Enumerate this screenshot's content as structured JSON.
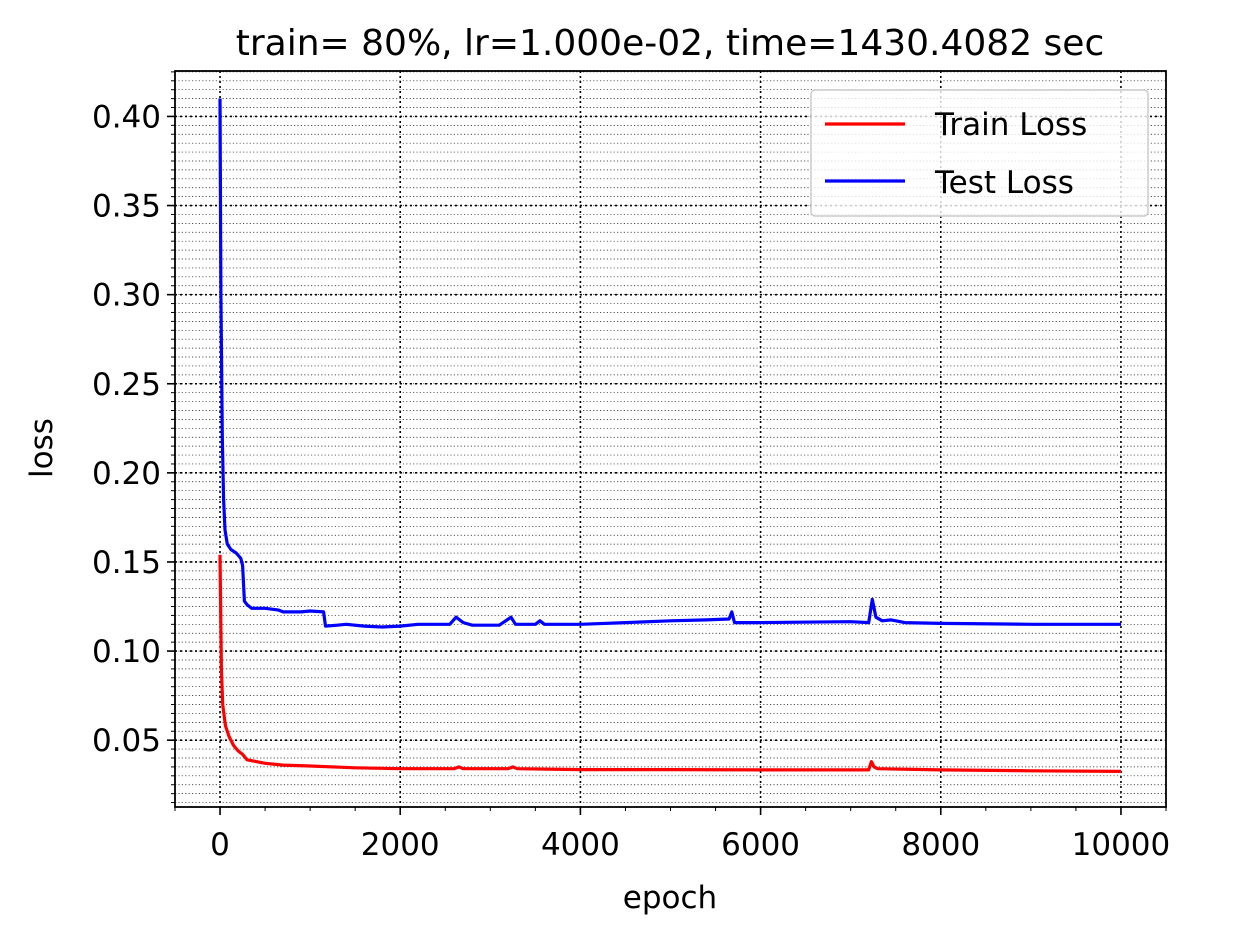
{
  "chart_data": {
    "type": "line",
    "title": "train= 80%, lr=1.000e-02, time=1430.4082 sec",
    "xlabel": "epoch",
    "ylabel": "loss",
    "xlim": [
      -500,
      10500
    ],
    "ylim": [
      0.0125,
      0.4255
    ],
    "x_ticks": [
      0,
      2000,
      4000,
      6000,
      8000,
      10000
    ],
    "x_tick_labels": [
      "0",
      "2000",
      "4000",
      "6000",
      "8000",
      "10000"
    ],
    "x_minor_step": 500,
    "y_ticks": [
      0.05,
      0.1,
      0.15,
      0.2,
      0.25,
      0.3,
      0.35,
      0.4
    ],
    "y_tick_labels": [
      "0.05",
      "0.10",
      "0.15",
      "0.20",
      "0.25",
      "0.30",
      "0.35",
      "0.40"
    ],
    "y_minor_step": 0.005,
    "grid": true,
    "grid_style": "dotted",
    "legend_position": "top-right",
    "series": [
      {
        "name": "Train Loss",
        "color": "#ff0000",
        "points": [
          [
            0,
            0.154
          ],
          [
            15,
            0.09
          ],
          [
            30,
            0.07
          ],
          [
            60,
            0.058
          ],
          [
            100,
            0.052
          ],
          [
            150,
            0.047
          ],
          [
            200,
            0.044
          ],
          [
            250,
            0.042
          ],
          [
            300,
            0.039
          ],
          [
            400,
            0.038
          ],
          [
            500,
            0.037
          ],
          [
            700,
            0.036
          ],
          [
            1000,
            0.0355
          ],
          [
            1500,
            0.0345
          ],
          [
            2000,
            0.034
          ],
          [
            2600,
            0.034
          ],
          [
            2650,
            0.035
          ],
          [
            2700,
            0.034
          ],
          [
            3200,
            0.034
          ],
          [
            3250,
            0.035
          ],
          [
            3300,
            0.034
          ],
          [
            4000,
            0.0335
          ],
          [
            5000,
            0.0335
          ],
          [
            6000,
            0.0333
          ],
          [
            7000,
            0.0333
          ],
          [
            7200,
            0.0333
          ],
          [
            7230,
            0.038
          ],
          [
            7260,
            0.035
          ],
          [
            7300,
            0.034
          ],
          [
            8000,
            0.0333
          ],
          [
            9000,
            0.0328
          ],
          [
            10000,
            0.0325
          ]
        ]
      },
      {
        "name": "Test Loss",
        "color": "#0000ff",
        "points": [
          [
            0,
            0.41
          ],
          [
            10,
            0.3
          ],
          [
            25,
            0.22
          ],
          [
            40,
            0.185
          ],
          [
            55,
            0.168
          ],
          [
            80,
            0.16
          ],
          [
            120,
            0.157
          ],
          [
            180,
            0.155
          ],
          [
            230,
            0.152
          ],
          [
            250,
            0.148
          ],
          [
            270,
            0.128
          ],
          [
            300,
            0.126
          ],
          [
            350,
            0.124
          ],
          [
            500,
            0.124
          ],
          [
            650,
            0.123
          ],
          [
            700,
            0.122
          ],
          [
            900,
            0.122
          ],
          [
            1000,
            0.1225
          ],
          [
            1150,
            0.122
          ],
          [
            1170,
            0.114
          ],
          [
            1300,
            0.1145
          ],
          [
            1400,
            0.115
          ],
          [
            1600,
            0.114
          ],
          [
            1800,
            0.1135
          ],
          [
            2000,
            0.114
          ],
          [
            2200,
            0.115
          ],
          [
            2550,
            0.115
          ],
          [
            2620,
            0.119
          ],
          [
            2700,
            0.116
          ],
          [
            2800,
            0.1145
          ],
          [
            3100,
            0.1145
          ],
          [
            3230,
            0.119
          ],
          [
            3280,
            0.115
          ],
          [
            3500,
            0.115
          ],
          [
            3550,
            0.117
          ],
          [
            3600,
            0.115
          ],
          [
            4000,
            0.115
          ],
          [
            4500,
            0.116
          ],
          [
            5000,
            0.117
          ],
          [
            5400,
            0.1175
          ],
          [
            5650,
            0.118
          ],
          [
            5680,
            0.122
          ],
          [
            5710,
            0.116
          ],
          [
            6000,
            0.116
          ],
          [
            7000,
            0.1165
          ],
          [
            7200,
            0.116
          ],
          [
            7240,
            0.129
          ],
          [
            7280,
            0.119
          ],
          [
            7350,
            0.117
          ],
          [
            7450,
            0.1175
          ],
          [
            7600,
            0.116
          ],
          [
            8000,
            0.1155
          ],
          [
            9000,
            0.115
          ],
          [
            10000,
            0.115
          ]
        ]
      }
    ]
  }
}
